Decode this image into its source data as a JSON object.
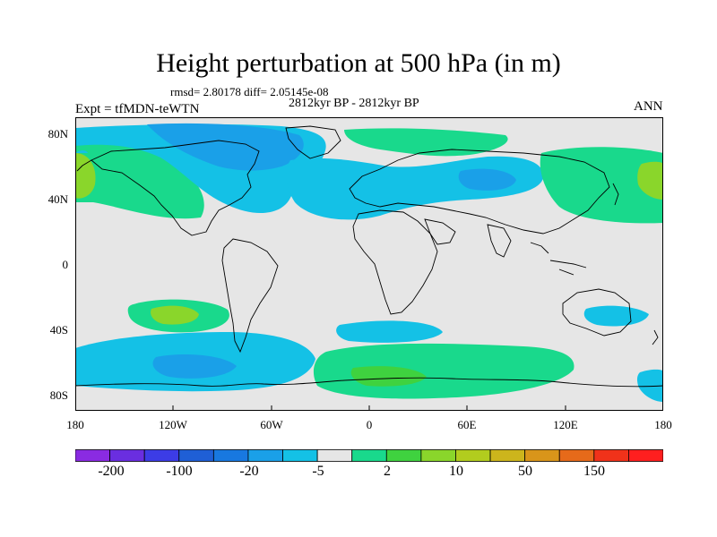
{
  "title": "Height perturbation at 500 hPa (in m)",
  "stats_line": "rmsd= 2.80178 diff= 2.05145e-08",
  "period_line": "2812kyr BP - 2812kyr BP",
  "experiment": "Expt = tfMDN-teWTN",
  "season": "ANN",
  "lat_ticks": [
    "80N",
    "40N",
    "0",
    "40S",
    "80S"
  ],
  "lon_ticks": [
    "180",
    "120W",
    "60W",
    "0",
    "60E",
    "120E",
    "180"
  ],
  "colorbar": {
    "colors": [
      "#8a2be2",
      "#6a2ee0",
      "#3c3ce6",
      "#1f5fd6",
      "#1878e0",
      "#1aa0e8",
      "#14c1e6",
      "#e6e6e6",
      "#19d98c",
      "#3fd23f",
      "#8ad62b",
      "#b2cc1e",
      "#ccb51c",
      "#d9951a",
      "#e66a1a",
      "#f0321a",
      "#ff1f1f"
    ],
    "labels": [
      "-200",
      "-100",
      "-20",
      "-5",
      "2",
      "10",
      "50",
      "150"
    ]
  }
}
